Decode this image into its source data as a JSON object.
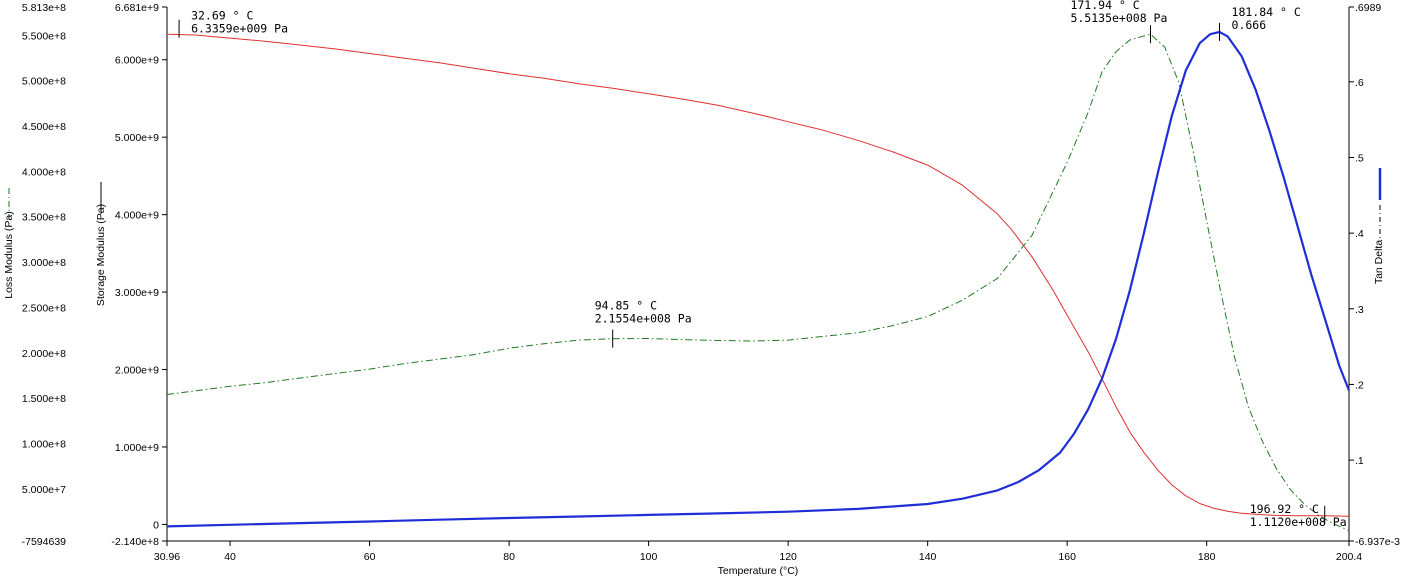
{
  "chart_data": {
    "type": "line",
    "title": "",
    "xlabel": "Temperature (°C)",
    "xlim": [
      30.96,
      200.4
    ],
    "x_tick_labels": [
      "30.96",
      "40",
      "60",
      "80",
      "100",
      "120",
      "140",
      "160",
      "180",
      "200.4"
    ],
    "x_tick_values": [
      30.96,
      40,
      60,
      80,
      100,
      120,
      140,
      160,
      180,
      200.4
    ],
    "axes": {
      "loss": {
        "label": "Loss Modulus (Pa)",
        "ylim": [
          -7594639,
          581300000
        ],
        "tick_labels": [
          "5.813e+8",
          "5.500e+8",
          "5.000e+8",
          "4.500e+8",
          "4.000e+8",
          "3.500e+8",
          "3.000e+8",
          "2.500e+8",
          "2.000e+8",
          "1.500e+8",
          "1.000e+8",
          "5.000e+7",
          "-7594639"
        ],
        "tick_values": [
          581300000,
          550000000,
          500000000,
          450000000,
          400000000,
          350000000,
          300000000,
          250000000,
          200000000,
          150000000,
          100000000,
          50000000,
          -7594639
        ]
      },
      "storage": {
        "label": "Storage Modulus (Pa)",
        "ylim": [
          -214000000,
          6681000000
        ],
        "tick_labels": [
          "6.681e+9",
          "6.000e+9",
          "5.000e+9",
          "4.000e+9",
          "3.000e+9",
          "2.000e+9",
          "1.000e+9",
          "0",
          "-2.140e+8"
        ],
        "tick_values": [
          6681000000,
          6000000000,
          5000000000,
          4000000000,
          3000000000,
          2000000000,
          1000000000,
          0,
          -214000000
        ]
      },
      "tan_delta": {
        "label": "Tan Delta",
        "ylim": [
          -0.006937,
          0.6989
        ],
        "tick_labels": [
          ".6989",
          ".6",
          ".5",
          ".4",
          ".3",
          ".2",
          ".1",
          "-6.937e-3"
        ],
        "tick_values": [
          0.6989,
          0.6,
          0.5,
          0.4,
          0.3,
          0.2,
          0.1,
          -0.006937
        ]
      }
    },
    "series": [
      {
        "axis": "storage",
        "color": "#e03030",
        "style": "solid",
        "x": [
          30.96,
          35,
          40,
          45,
          50,
          55,
          60,
          65,
          70,
          75,
          80,
          85,
          90,
          95,
          100,
          105,
          110,
          115,
          120,
          125,
          130,
          135,
          140,
          145,
          150,
          152,
          155,
          158,
          160,
          163,
          165,
          167,
          169,
          171,
          173,
          175,
          177,
          179,
          181,
          183,
          185,
          188,
          190,
          193,
          196.92,
          200.4
        ],
        "y": [
          6330000000,
          6320000000,
          6280000000,
          6240000000,
          6190000000,
          6140000000,
          6080000000,
          6020000000,
          5960000000,
          5890000000,
          5820000000,
          5760000000,
          5690000000,
          5630000000,
          5560000000,
          5490000000,
          5410000000,
          5310000000,
          5200000000,
          5090000000,
          4960000000,
          4810000000,
          4640000000,
          4380000000,
          4010000000,
          3810000000,
          3450000000,
          3020000000,
          2700000000,
          2230000000,
          1880000000,
          1520000000,
          1190000000,
          930000000,
          700000000,
          510000000,
          370000000,
          270000000,
          210000000,
          170000000,
          145000000,
          125000000,
          117000000,
          113000000,
          111200000,
          105000000
        ]
      },
      {
        "axis": "loss",
        "color": "#1f7a1f",
        "style": "dashdot",
        "x": [
          30.96,
          35,
          40,
          45,
          50,
          55,
          60,
          65,
          70,
          75,
          80,
          85,
          90,
          94.85,
          100,
          105,
          110,
          115,
          120,
          125,
          130,
          135,
          140,
          145,
          150,
          155,
          158,
          160,
          163,
          165,
          167,
          169,
          171.94,
          174,
          176,
          178,
          180,
          182,
          184,
          186,
          188,
          190,
          192,
          194,
          196,
          198,
          200.4
        ],
        "y": [
          154000000,
          158000000,
          163000000,
          167000000,
          172000000,
          177000000,
          182000000,
          188000000,
          193000000,
          198000000,
          205000000,
          210000000,
          214000000,
          215540000,
          215700000,
          214500000,
          213500000,
          213000000,
          214000000,
          218000000,
          222000000,
          230000000,
          240000000,
          258000000,
          282000000,
          330000000,
          378000000,
          410000000,
          465000000,
          510000000,
          532000000,
          545000000,
          551350000,
          537000000,
          498000000,
          425000000,
          345000000,
          268000000,
          195000000,
          140000000,
          102000000,
          72000000,
          49000000,
          33000000,
          21000000,
          12000000,
          4000000
        ]
      },
      {
        "axis": "tan_delta",
        "color": "#1f2ed6",
        "style": "solid",
        "x": [
          30.96,
          40,
          50,
          60,
          70,
          80,
          90,
          100,
          110,
          120,
          130,
          140,
          145,
          150,
          153,
          156,
          159,
          161,
          163,
          165,
          167,
          169,
          171,
          173,
          175,
          177,
          179,
          180.5,
          181.84,
          183,
          185,
          187,
          189,
          191,
          193,
          195,
          197,
          199,
          200.4
        ],
        "y": [
          0.0123,
          0.0145,
          0.0167,
          0.0188,
          0.0212,
          0.0235,
          0.0255,
          0.0275,
          0.0295,
          0.0318,
          0.0355,
          0.042,
          0.049,
          0.06,
          0.071,
          0.087,
          0.11,
          0.135,
          0.167,
          0.208,
          0.26,
          0.325,
          0.4,
          0.48,
          0.555,
          0.615,
          0.651,
          0.663,
          0.666,
          0.66,
          0.634,
          0.59,
          0.535,
          0.475,
          0.41,
          0.345,
          0.285,
          0.225,
          0.192
        ]
      }
    ],
    "annotations": [
      {
        "series": 0,
        "x": 32.69,
        "y": 6335900000,
        "line1": "32.69 ° C",
        "line2": "6.3359e+009 Pa"
      },
      {
        "series": 1,
        "x": 94.85,
        "y": 215540000,
        "line1": "94.85 ° C",
        "line2": "2.1554e+008 Pa"
      },
      {
        "series": 1,
        "x": 171.94,
        "y": 551350000,
        "line1": "171.94 ° C",
        "line2": "5.5135e+008 Pa"
      },
      {
        "series": 2,
        "x": 181.84,
        "y": 0.666,
        "line1": "181.84 ° C",
        "line2": "0.666"
      },
      {
        "series": 0,
        "x": 196.92,
        "y": 111200000,
        "line1": "196.92 ° C",
        "line2": "1.1120e+008 Pa"
      }
    ],
    "grid": false
  }
}
